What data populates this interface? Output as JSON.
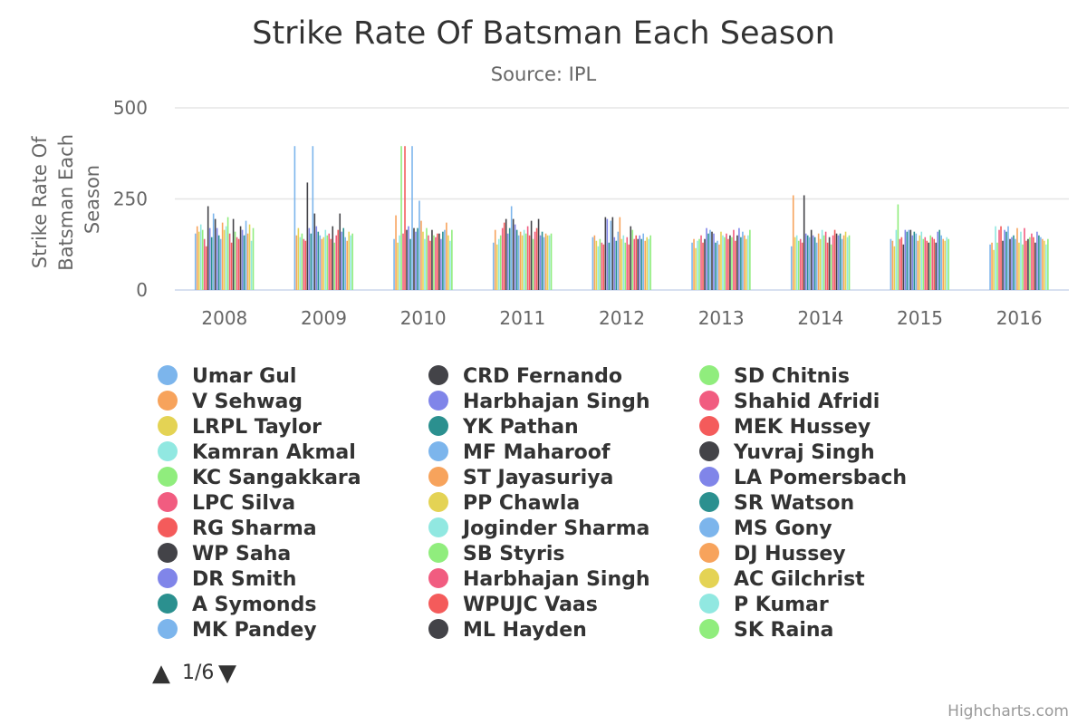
{
  "chart_data": {
    "type": "bar",
    "title": "Strike Rate Of Batsman Each Season",
    "subtitle": "Source: IPL",
    "xlabel": "",
    "ylabel": "Strike Rate Of Batsman Each Season",
    "ylim": [
      0,
      500
    ],
    "yticks": [
      "0",
      "250",
      "500"
    ],
    "categories": [
      "2008",
      "2009",
      "2010",
      "2011",
      "2012",
      "2013",
      "2014",
      "2015",
      "2016"
    ],
    "grid": true,
    "legend_position": "bottom",
    "series": [
      {
        "name": "Umar Gul",
        "color": "#7cb5ec",
        "values": [
          155,
          395,
          140,
          130,
          145,
          130,
          120,
          140,
          125
        ]
      },
      {
        "name": "V Sehwag",
        "color": "#f7a35c",
        "values": [
          175,
          150,
          205,
          165,
          150,
          140,
          260,
          135,
          130
        ]
      },
      {
        "name": "LRPL Taylor",
        "color": "#e4d354",
        "values": [
          160,
          170,
          130,
          125,
          135,
          115,
          145,
          120,
          110
        ]
      },
      {
        "name": "Kamran Akmal",
        "color": "#91e8e1",
        "values": [
          180,
          145,
          150,
          140,
          120,
          135,
          150,
          165,
          175
        ]
      },
      {
        "name": "KC Sangakkara",
        "color": "#90ed7d",
        "values": [
          165,
          155,
          395,
          150,
          140,
          140,
          135,
          235,
          130
        ]
      },
      {
        "name": "LPC Silva",
        "color": "#f15c80",
        "values": [
          140,
          140,
          155,
          170,
          130,
          150,
          140,
          140,
          165
        ]
      },
      {
        "name": "RG Sharma",
        "color": "#f45b5b",
        "values": [
          120,
          135,
          395,
          185,
          125,
          130,
          130,
          145,
          175
        ]
      },
      {
        "name": "WP Saha",
        "color": "#434348",
        "values": [
          230,
          295,
          165,
          195,
          200,
          140,
          260,
          125,
          135
        ]
      },
      {
        "name": "DR Smith",
        "color": "#8085e9",
        "values": [
          170,
          170,
          175,
          155,
          195,
          170,
          155,
          165,
          165
        ]
      },
      {
        "name": "A Symonds",
        "color": "#2b908f",
        "values": [
          145,
          155,
          140,
          170,
          130,
          155,
          150,
          160,
          160
        ]
      },
      {
        "name": "MK Pandey",
        "color": "#7cb5ec",
        "values": [
          210,
          395,
          395,
          230,
          190,
          165,
          145,
          165,
          175
        ]
      },
      {
        "name": "CRD Fernando",
        "color": "#434348",
        "values": [
          195,
          210,
          170,
          195,
          200,
          160,
          165,
          165,
          140
        ]
      },
      {
        "name": "Harbhajan Singh",
        "color": "#8085e9",
        "values": [
          170,
          175,
          160,
          180,
          145,
          155,
          150,
          150,
          145
        ]
      },
      {
        "name": "YK Pathan",
        "color": "#2b908f",
        "values": [
          150,
          160,
          170,
          165,
          135,
          130,
          145,
          160,
          150
        ]
      },
      {
        "name": "MF Maharoof",
        "color": "#7cb5ec",
        "values": [
          140,
          150,
          245,
          150,
          160,
          135,
          130,
          155,
          140
        ]
      },
      {
        "name": "ST Jayasuriya",
        "color": "#f7a35c",
        "values": [
          185,
          140,
          190,
          160,
          200,
          125,
          155,
          135,
          170
        ]
      },
      {
        "name": "PP Chawla",
        "color": "#e4d354",
        "values": [
          165,
          145,
          160,
          150,
          140,
          160,
          140,
          150,
          130
        ]
      },
      {
        "name": "Joginder Sharma",
        "color": "#91e8e1",
        "values": [
          175,
          165,
          140,
          165,
          150,
          150,
          165,
          160,
          160
        ]
      },
      {
        "name": "SB Styris",
        "color": "#90ed7d",
        "values": [
          200,
          150,
          170,
          155,
          130,
          145,
          150,
          140,
          125
        ]
      },
      {
        "name": "Harbhajan Singh",
        "color": "#f15c80",
        "values": [
          155,
          155,
          150,
          175,
          145,
          155,
          160,
          145,
          170
        ]
      },
      {
        "name": "WPUJC Vaas",
        "color": "#f45b5b",
        "values": [
          130,
          140,
          135,
          150,
          125,
          140,
          130,
          135,
          135
        ]
      },
      {
        "name": "ML Hayden",
        "color": "#434348",
        "values": [
          195,
          175,
          165,
          190,
          175,
          150,
          145,
          130,
          140
        ]
      },
      {
        "name": "SD Chitnis",
        "color": "#90ed7d",
        "values": [
          160,
          130,
          150,
          140,
          165,
          145,
          125,
          150,
          145
        ]
      },
      {
        "name": "Shahid Afridi",
        "color": "#f15c80",
        "values": [
          145,
          150,
          145,
          160,
          140,
          165,
          150,
          145,
          155
        ]
      },
      {
        "name": "MEK Hussey",
        "color": "#f45b5b",
        "values": [
          140,
          165,
          155,
          170,
          150,
          135,
          165,
          140,
          145
        ]
      },
      {
        "name": "Yuvraj Singh",
        "color": "#434348",
        "values": [
          175,
          210,
          155,
          195,
          140,
          150,
          155,
          130,
          130
        ]
      },
      {
        "name": "LA Pomersbach",
        "color": "#8085e9",
        "values": [
          165,
          160,
          140,
          150,
          150,
          170,
          150,
          160,
          160
        ]
      },
      {
        "name": "SR Watson",
        "color": "#2b908f",
        "values": [
          150,
          170,
          160,
          160,
          140,
          145,
          155,
          165,
          150
        ]
      },
      {
        "name": "MS Gony",
        "color": "#7cb5ec",
        "values": [
          190,
          145,
          165,
          145,
          155,
          160,
          140,
          150,
          145
        ]
      },
      {
        "name": "DJ Hussey",
        "color": "#f7a35c",
        "values": [
          155,
          135,
          185,
          155,
          135,
          150,
          150,
          140,
          140
        ]
      },
      {
        "name": "AC Gilchrist",
        "color": "#e4d354",
        "values": [
          180,
          160,
          150,
          150,
          145,
          140,
          160,
          135,
          135
        ]
      },
      {
        "name": "P Kumar",
        "color": "#91e8e1",
        "values": [
          135,
          150,
          135,
          150,
          140,
          150,
          145,
          145,
          125
        ]
      },
      {
        "name": "SK Raina",
        "color": "#90ed7d",
        "values": [
          170,
          155,
          165,
          155,
          150,
          165,
          150,
          140,
          140
        ]
      }
    ]
  },
  "legend": {
    "page_label": "1/6",
    "up_arrow": "▲",
    "down_arrow": "▼"
  },
  "credits": "Highcharts.com"
}
